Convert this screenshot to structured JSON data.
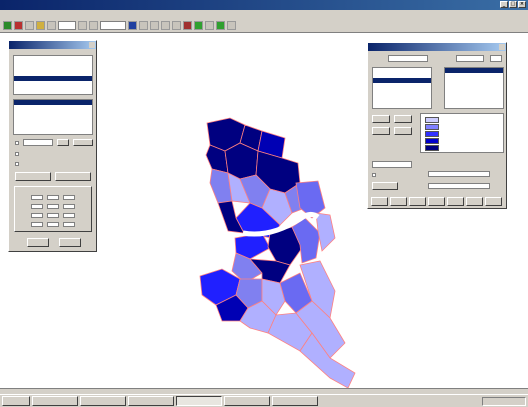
{
  "window": {
    "title": "",
    "controls": [
      "_",
      "□",
      "×"
    ]
  },
  "menu": {
    "items": [
      "",
      "",
      "",
      "",
      "",
      "",
      "",
      "",
      "",
      ""
    ]
  },
  "toolbar": {
    "zoom_select": "",
    "layer_select": ""
  },
  "left_panel": {
    "title": "",
    "top_list": [
      "",
      "",
      "",
      "",
      "",
      ""
    ],
    "top_list_selected": 4,
    "bottom_list": [
      "",
      "",
      "",
      "",
      ""
    ],
    "bottom_list_selected": 0,
    "button_a": "",
    "button_b": "",
    "ok_label": "",
    "cancel_label": ""
  },
  "right_panel": {
    "title": "",
    "field_a": "",
    "field_b": "",
    "left_list": [
      "",
      "",
      "",
      "",
      ""
    ],
    "right_list": [
      "",
      "",
      "",
      "",
      "",
      ""
    ],
    "legend": [
      {
        "color": "#ccccff",
        "label": ""
      },
      {
        "color": "#8080ff",
        "label": ""
      },
      {
        "color": "#3030ff",
        "label": ""
      },
      {
        "color": "#0000cc",
        "label": ""
      },
      {
        "color": "#000080",
        "label": ""
      }
    ],
    "apply_label": "",
    "bottom_buttons": [
      "",
      "",
      "",
      "",
      "",
      "",
      ""
    ]
  },
  "map": {
    "fill_colors": [
      "#000080",
      "#0000b4",
      "#2020ff",
      "#8080f0",
      "#b0b0ff",
      "#6a6af2"
    ],
    "boundary_color": "#ff8080"
  },
  "taskbar": {
    "start_label": "",
    "tasks": [
      "",
      "",
      "",
      "",
      "",
      ""
    ],
    "active_task": 3,
    "clock": ""
  }
}
